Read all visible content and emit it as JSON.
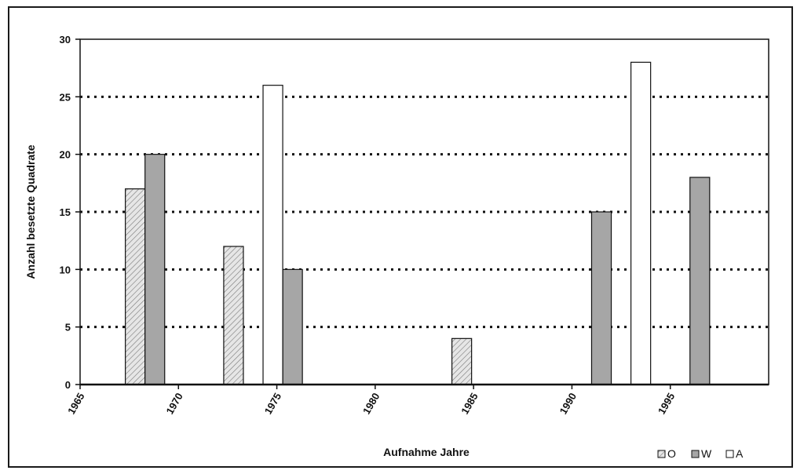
{
  "chart_data": {
    "type": "bar",
    "title": "",
    "xlabel": "Aufnahme Jahre",
    "ylabel": "Anzahl besetzte Quadrate",
    "xlim": [
      1965,
      2000
    ],
    "ylim": [
      0,
      30
    ],
    "x_ticks": [
      "1965",
      "1970",
      "1975",
      "1980",
      "1985",
      "1990",
      "1995"
    ],
    "y_ticks": [
      "0",
      "5",
      "10",
      "15",
      "20",
      "25",
      "30"
    ],
    "grid": "horizontal dotted",
    "legend_position": "bottom-right",
    "series": [
      {
        "name": "O",
        "color": "#d8d8d8",
        "pattern": "hatched",
        "points": [
          {
            "x": 1967.8,
            "y": 17
          },
          {
            "x": 1972.8,
            "y": 12
          },
          {
            "x": 1984.4,
            "y": 4
          }
        ]
      },
      {
        "name": "W",
        "color": "#a6a6a6",
        "pattern": "solid",
        "points": [
          {
            "x": 1968.8,
            "y": 20
          },
          {
            "x": 1975.8,
            "y": 10
          },
          {
            "x": 1991.5,
            "y": 15
          },
          {
            "x": 1996.5,
            "y": 18
          }
        ]
      },
      {
        "name": "A",
        "color": "#ffffff",
        "pattern": "solid",
        "points": [
          {
            "x": 1974.8,
            "y": 26
          },
          {
            "x": 1993.5,
            "y": 28
          }
        ]
      }
    ]
  }
}
